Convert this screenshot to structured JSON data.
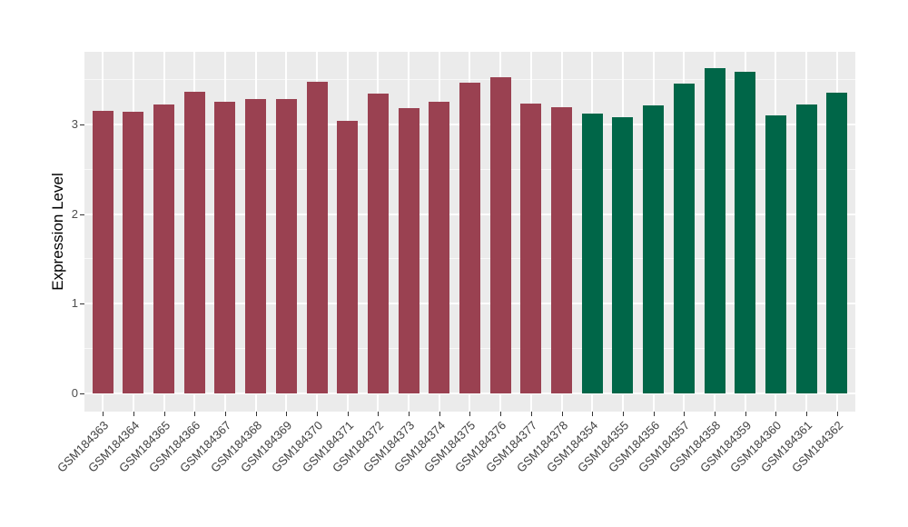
{
  "chart_data": {
    "type": "bar",
    "title": "",
    "xlabel": "",
    "ylabel": "Expression Level",
    "ylim": [
      0,
      3.8
    ],
    "y_ticks": [
      0,
      1,
      2,
      3
    ],
    "y_minor_ticks": [
      0.5,
      1.5,
      2.5,
      3.5
    ],
    "grid": "on",
    "legend_position": "none",
    "panel_background": "#EBEBEB",
    "gridline_color": "#FFFFFF",
    "x_tick_label_angle": 45,
    "series": [
      {
        "color": "#9A4151",
        "categories": [
          "GSM184363",
          "GSM184364",
          "GSM184365",
          "GSM184366",
          "GSM184367",
          "GSM184368",
          "GSM184369",
          "GSM184370",
          "GSM184371",
          "GSM184372",
          "GSM184373",
          "GSM184374",
          "GSM184375",
          "GSM184376",
          "GSM184377",
          "GSM184378"
        ],
        "values": [
          3.15,
          3.14,
          3.22,
          3.36,
          3.25,
          3.28,
          3.28,
          3.48,
          3.04,
          3.34,
          3.18,
          3.25,
          3.47,
          3.53,
          3.23,
          3.19
        ]
      },
      {
        "color": "#006648",
        "categories": [
          "GSM184354",
          "GSM184355",
          "GSM184356",
          "GSM184357",
          "GSM184358",
          "GSM184359",
          "GSM184360",
          "GSM184361",
          "GSM184362"
        ],
        "values": [
          3.12,
          3.08,
          3.21,
          3.46,
          3.63,
          3.59,
          3.1,
          3.22,
          3.35
        ]
      }
    ]
  }
}
